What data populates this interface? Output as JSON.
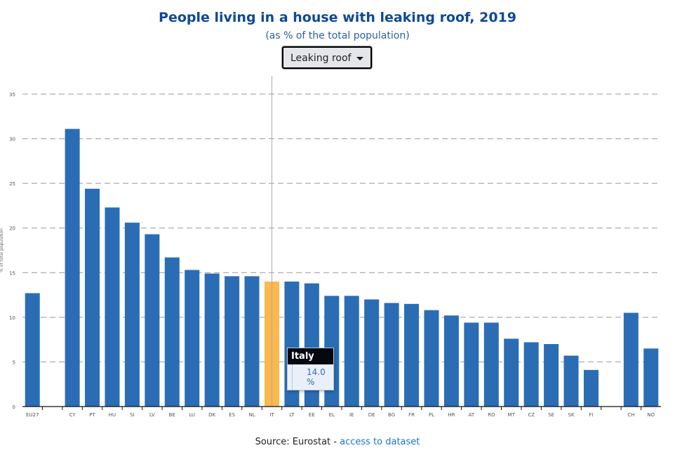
{
  "header": {
    "title": "People living in a house with leaking roof, 2019",
    "subtitle": "(as % of the total population)"
  },
  "dropdown": {
    "selected": "Leaking roof"
  },
  "tooltip": {
    "country": "Italy",
    "value": "14.0 %"
  },
  "source": {
    "prefix": "Source: Eurostat - ",
    "link": "access to dataset"
  },
  "chart_data": {
    "type": "bar",
    "title": "People living in a house with leaking roof, 2019",
    "subtitle": "(as % of the total population)",
    "ylabel": "% of total population",
    "xlabel": "",
    "ylim": [
      0,
      35
    ],
    "yticks": [
      0,
      5,
      10,
      15,
      20,
      25,
      30,
      35
    ],
    "grid": true,
    "categories": [
      "EU27",
      "",
      "CY",
      "PT",
      "HU",
      "SI",
      "LV",
      "BE",
      "LU",
      "DK",
      "ES",
      "NL",
      "IT",
      "LT",
      "EE",
      "EL",
      "IE",
      "DE",
      "BG",
      "FR",
      "PL",
      "HR",
      "AT",
      "RO",
      "MT",
      "CZ",
      "SE",
      "SK",
      "FI",
      "",
      "CH",
      "NO"
    ],
    "values": [
      12.7,
      null,
      31.1,
      24.4,
      22.3,
      20.6,
      19.3,
      16.7,
      15.3,
      14.9,
      14.6,
      14.6,
      14.0,
      14.0,
      13.8,
      12.4,
      12.4,
      12.0,
      11.6,
      11.5,
      10.8,
      10.2,
      9.4,
      9.4,
      7.6,
      7.2,
      7.0,
      5.7,
      4.1,
      null,
      10.5,
      6.5
    ],
    "highlighted": "IT",
    "colors": {
      "bar": "#2a6db5",
      "highlight": "#fbb84d",
      "grid": "#999999"
    }
  }
}
